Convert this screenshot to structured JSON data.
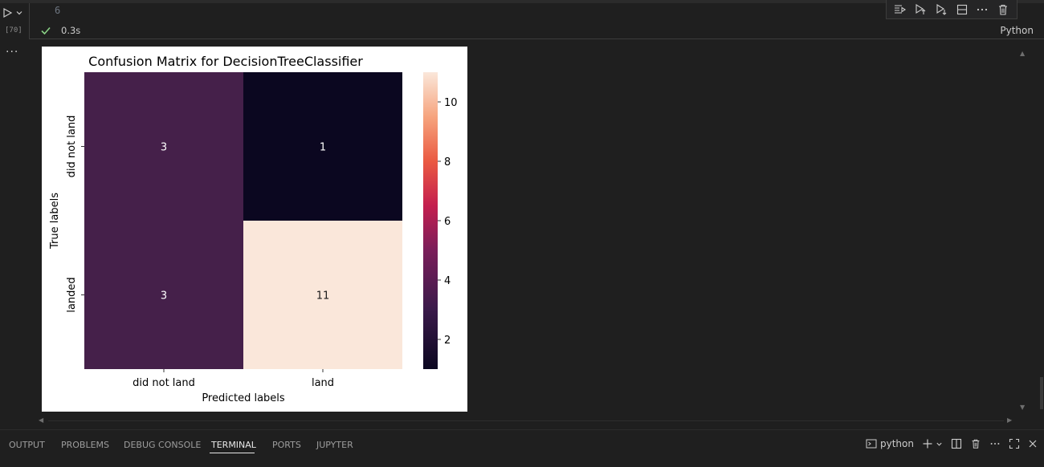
{
  "cell": {
    "execution_count": "[70]",
    "code_line_number": "6",
    "status_time": "0.3s",
    "language": "Python",
    "output_more": "···"
  },
  "toolbar_icons": [
    "run-by-line-icon",
    "execute-above-icon",
    "execute-below-icon",
    "split-cell-icon",
    "more-icon",
    "delete-icon"
  ],
  "chart_data": {
    "type": "heatmap",
    "title": "Confusion Matrix for DecisionTreeClassifier",
    "xlabel": "Predicted labels",
    "ylabel": "True labels",
    "x_tick_labels": [
      "did not land",
      "land"
    ],
    "y_tick_labels": [
      "did not land",
      "landed"
    ],
    "values": [
      [
        3,
        1
      ],
      [
        3,
        11
      ]
    ],
    "colormap": "rocket",
    "colorbar": {
      "min": 1,
      "max": 11,
      "ticks": [
        "2",
        "4",
        "6",
        "8",
        "10"
      ]
    },
    "cell_colors": [
      [
        "#45204a",
        "#0b0720"
      ],
      [
        "#45204a",
        "#fae7da"
      ]
    ]
  },
  "panel": {
    "tabs": [
      "OUTPUT",
      "PROBLEMS",
      "DEBUG CONSOLE",
      "TERMINAL",
      "PORTS",
      "JUPYTER"
    ],
    "active_tab": "TERMINAL",
    "terminal_name": "python"
  },
  "colors": {
    "success_check": "#89d185",
    "editor_bg": "#1f1f1f"
  }
}
